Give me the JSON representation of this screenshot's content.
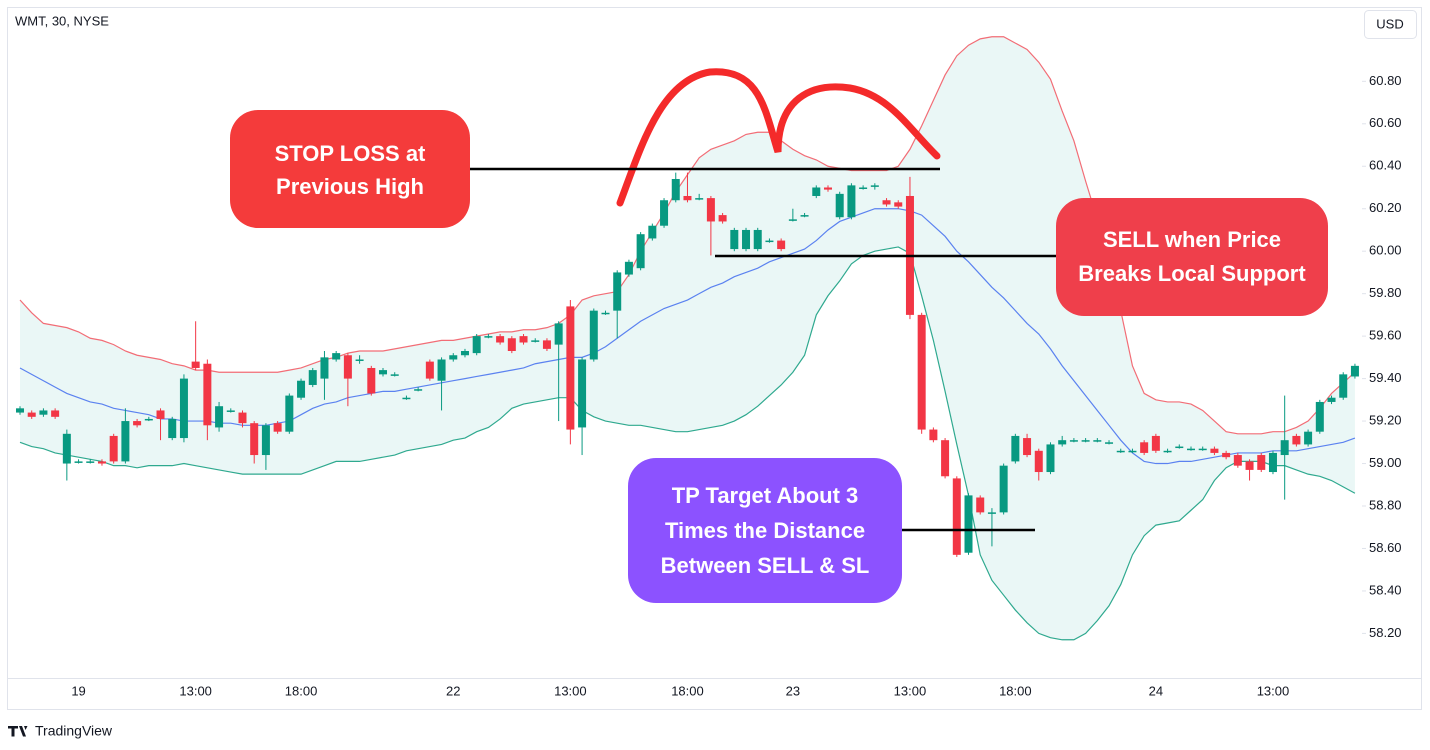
{
  "chart_data": {
    "type": "candlestick",
    "title": "WMT, 30, NYSE",
    "currency": "USD",
    "brand": "TradingView",
    "up_color": "#089981",
    "down_color": "#f23645",
    "band_fill": "#eaf7f6",
    "categories": [
      null,
      null,
      null,
      null,
      null,
      "19",
      null,
      null,
      null,
      null,
      null,
      null,
      null,
      null,
      null,
      "13:00",
      null,
      null,
      null,
      null,
      null,
      null,
      null,
      null,
      "18:00",
      null,
      null,
      null,
      null,
      null,
      null,
      null,
      null,
      null,
      null,
      null,
      null,
      "22",
      null,
      null,
      null,
      null,
      null,
      null,
      null,
      null,
      null,
      "13:00",
      null,
      null,
      null,
      null,
      null,
      null,
      null,
      null,
      null,
      "18:00",
      null,
      null,
      null,
      null,
      null,
      null,
      null,
      null,
      "23",
      null,
      null,
      null,
      null,
      null,
      null,
      null,
      null,
      null,
      "13:00",
      null,
      null,
      null,
      null,
      null,
      null,
      null,
      null,
      "18:00",
      null,
      null,
      null,
      null,
      null,
      null,
      null,
      null,
      null,
      null,
      null,
      "24",
      null,
      null,
      null,
      null,
      null,
      null,
      null,
      null,
      null,
      "13:00",
      null,
      null,
      null,
      null,
      null,
      null,
      null
    ],
    "open": [
      59.24,
      59.24,
      59.23,
      59.25,
      59.0,
      59.01,
      59.01,
      59.01,
      59.13,
      59.01,
      59.2,
      59.21,
      59.25,
      59.12,
      59.12,
      59.48,
      59.47,
      59.17,
      59.25,
      59.24,
      59.19,
      59.04,
      59.19,
      59.15,
      59.31,
      59.37,
      59.4,
      59.49,
      59.51,
      59.49,
      59.45,
      59.42,
      59.42,
      59.31,
      59.35,
      59.48,
      59.39,
      59.49,
      59.51,
      59.52,
      59.6,
      59.6,
      59.59,
      59.6,
      59.58,
      59.58,
      59.56,
      59.74,
      59.17,
      59.49,
      59.71,
      59.72,
      59.89,
      59.92,
      60.06,
      60.12,
      60.24,
      60.26,
      60.25,
      60.25,
      60.17,
      60.01,
      60.01,
      60.01,
      60.05,
      60.05,
      60.15,
      60.17,
      60.26,
      60.3,
      60.16,
      60.16,
      60.3,
      60.31,
      60.24,
      60.23,
      60.26,
      59.7,
      59.16,
      59.11,
      58.93,
      58.58,
      58.84,
      58.77,
      58.77,
      59.01,
      59.12,
      59.06,
      58.96,
      59.09,
      59.11,
      59.11,
      59.11,
      59.1,
      59.06,
      59.06,
      59.1,
      59.13,
      59.06,
      59.08,
      59.07,
      59.07,
      59.07,
      59.05,
      59.04,
      59.01,
      59.04,
      58.96,
      59.04,
      59.13,
      59.09,
      59.15,
      59.29,
      59.31,
      59.41
    ],
    "high": [
      59.27,
      59.25,
      59.26,
      59.26,
      59.16,
      59.02,
      59.02,
      59.02,
      59.14,
      59.26,
      59.21,
      59.22,
      59.26,
      59.22,
      59.42,
      59.67,
      59.49,
      59.29,
      59.26,
      59.25,
      59.2,
      59.19,
      59.2,
      59.33,
      59.4,
      59.45,
      59.53,
      59.53,
      59.52,
      59.51,
      59.46,
      59.45,
      59.43,
      59.32,
      59.36,
      59.49,
      59.5,
      59.52,
      59.54,
      59.61,
      59.61,
      59.61,
      59.6,
      59.61,
      59.59,
      59.59,
      59.67,
      59.77,
      59.5,
      59.73,
      59.72,
      59.91,
      59.96,
      60.09,
      60.13,
      60.25,
      60.37,
      60.37,
      60.27,
      60.26,
      60.18,
      60.11,
      60.11,
      60.11,
      60.06,
      60.06,
      60.2,
      60.18,
      60.31,
      60.31,
      60.28,
      60.32,
      60.31,
      60.32,
      60.25,
      60.24,
      60.35,
      59.71,
      59.17,
      59.12,
      58.94,
      58.86,
      58.85,
      58.79,
      59.0,
      59.14,
      59.14,
      59.07,
      59.1,
      59.13,
      59.12,
      59.12,
      59.12,
      59.11,
      59.07,
      59.07,
      59.11,
      59.14,
      59.07,
      59.09,
      59.08,
      59.08,
      59.08,
      59.06,
      59.05,
      59.02,
      59.05,
      59.06,
      59.32,
      59.14,
      59.16,
      59.3,
      59.32,
      59.43,
      59.47
    ],
    "low": [
      59.23,
      59.21,
      59.22,
      59.21,
      58.92,
      59.0,
      59.0,
      58.99,
      59.0,
      59.0,
      59.17,
      59.2,
      59.11,
      59.11,
      59.1,
      59.44,
      59.11,
      59.15,
      59.24,
      59.17,
      59.0,
      58.97,
      59.14,
      59.14,
      59.3,
      59.36,
      59.3,
      59.48,
      59.27,
      59.47,
      59.32,
      59.41,
      59.41,
      59.3,
      59.34,
      59.39,
      59.25,
      59.48,
      59.5,
      59.51,
      59.59,
      59.56,
      59.52,
      59.56,
      59.57,
      59.53,
      59.2,
      59.09,
      59.04,
      59.48,
      59.7,
      59.59,
      59.88,
      59.91,
      60.05,
      60.11,
      60.23,
      60.23,
      60.24,
      59.98,
      60.13,
      60.0,
      60.0,
      60.0,
      60.04,
      60.0,
      60.14,
      60.16,
      60.25,
      60.28,
      60.15,
      60.15,
      60.29,
      60.29,
      60.21,
      60.2,
      59.68,
      59.14,
      59.1,
      58.93,
      58.56,
      58.57,
      58.76,
      58.61,
      58.76,
      59.0,
      59.03,
      58.92,
      58.95,
      59.08,
      59.1,
      59.1,
      59.1,
      59.09,
      59.05,
      59.05,
      59.04,
      59.05,
      59.05,
      59.07,
      59.06,
      59.06,
      59.04,
      59.02,
      58.98,
      58.92,
      58.96,
      58.95,
      58.83,
      59.08,
      59.08,
      59.14,
      59.28,
      59.3,
      59.4
    ],
    "close": [
      59.26,
      59.22,
      59.25,
      59.22,
      59.14,
      59.01,
      59.01,
      59.0,
      59.01,
      59.2,
      59.18,
      59.21,
      59.21,
      59.21,
      59.4,
      59.45,
      59.18,
      59.27,
      59.25,
      59.19,
      59.04,
      59.18,
      59.15,
      59.32,
      59.39,
      59.44,
      59.5,
      59.52,
      59.4,
      59.49,
      59.33,
      59.44,
      59.42,
      59.31,
      59.35,
      59.4,
      59.49,
      59.51,
      59.53,
      59.6,
      59.6,
      59.57,
      59.53,
      59.57,
      59.58,
      59.54,
      59.66,
      59.16,
      59.49,
      59.72,
      59.71,
      59.9,
      59.95,
      60.08,
      60.12,
      60.24,
      60.34,
      60.24,
      60.25,
      60.14,
      60.14,
      60.1,
      60.1,
      60.1,
      60.05,
      60.01,
      60.15,
      60.17,
      60.3,
      60.29,
      60.27,
      60.31,
      60.3,
      60.31,
      60.22,
      60.21,
      59.7,
      59.16,
      59.11,
      58.94,
      58.57,
      58.85,
      58.77,
      58.77,
      58.99,
      59.13,
      59.04,
      58.96,
      59.09,
      59.11,
      59.11,
      59.11,
      59.11,
      59.1,
      59.06,
      59.06,
      59.05,
      59.06,
      59.06,
      59.08,
      59.07,
      59.07,
      59.05,
      59.03,
      58.99,
      58.97,
      58.97,
      59.05,
      59.11,
      59.09,
      59.15,
      59.29,
      59.31,
      59.42,
      59.46
    ],
    "upper_band": {
      "color": "#f26d76",
      "values": [
        59.77,
        59.71,
        59.66,
        59.65,
        59.64,
        59.62,
        59.59,
        59.58,
        59.56,
        59.53,
        59.51,
        59.5,
        59.49,
        59.47,
        59.46,
        59.44,
        59.44,
        59.43,
        59.43,
        59.43,
        59.43,
        59.43,
        59.43,
        59.44,
        59.45,
        59.47,
        59.49,
        59.5,
        59.52,
        59.53,
        59.53,
        59.53,
        59.54,
        59.55,
        59.56,
        59.57,
        59.58,
        59.58,
        59.59,
        59.6,
        59.61,
        59.62,
        59.62,
        59.63,
        59.63,
        59.64,
        59.66,
        59.7,
        59.77,
        59.79,
        59.8,
        59.81,
        59.89,
        60.0,
        60.09,
        60.18,
        60.28,
        60.36,
        60.44,
        60.48,
        60.5,
        60.52,
        60.55,
        60.56,
        60.56,
        60.52,
        60.48,
        60.45,
        60.43,
        60.4,
        60.39,
        60.38,
        60.38,
        60.38,
        60.38,
        60.4,
        60.48,
        60.59,
        60.71,
        60.83,
        60.92,
        60.97,
        61.0,
        61.01,
        61.01,
        60.98,
        60.95,
        60.89,
        60.81,
        60.66,
        60.52,
        60.33,
        60.15,
        59.95,
        59.72,
        59.46,
        59.33,
        59.3,
        59.29,
        59.29,
        59.28,
        59.25,
        59.2,
        59.15,
        59.14,
        59.14,
        59.14,
        59.15,
        59.15,
        59.17,
        59.2,
        59.26,
        59.33,
        59.38,
        59.43
      ]
    },
    "middle_band": {
      "color": "#5b82f0",
      "values": [
        59.45,
        59.42,
        59.39,
        59.36,
        59.33,
        59.31,
        59.29,
        59.28,
        59.26,
        59.25,
        59.24,
        59.23,
        59.21,
        59.21,
        59.2,
        59.2,
        59.2,
        59.19,
        59.19,
        59.18,
        59.18,
        59.18,
        59.19,
        59.2,
        59.23,
        59.26,
        59.28,
        59.29,
        59.31,
        59.32,
        59.33,
        59.34,
        59.34,
        59.35,
        59.36,
        59.37,
        59.38,
        59.39,
        59.4,
        59.41,
        59.42,
        59.43,
        59.44,
        59.45,
        59.47,
        59.48,
        59.49,
        59.5,
        59.5,
        59.52,
        59.55,
        59.59,
        59.63,
        59.67,
        59.7,
        59.73,
        59.75,
        59.77,
        59.8,
        59.83,
        59.85,
        59.88,
        59.9,
        59.92,
        59.95,
        59.97,
        59.99,
        60.01,
        60.05,
        60.1,
        60.14,
        60.16,
        60.18,
        60.2,
        60.2,
        60.2,
        60.19,
        60.17,
        60.12,
        60.07,
        60.0,
        59.95,
        59.89,
        59.83,
        59.78,
        59.72,
        59.66,
        59.61,
        59.54,
        59.46,
        59.39,
        59.32,
        59.25,
        59.18,
        59.11,
        59.05,
        59.01,
        59.0,
        59.0,
        59.01,
        59.01,
        59.02,
        59.03,
        59.04,
        59.05,
        59.05,
        59.05,
        59.06,
        59.06,
        59.06,
        59.07,
        59.08,
        59.09,
        59.1,
        59.12
      ]
    },
    "lower_band": {
      "color": "#2fa98f",
      "values": [
        59.1,
        59.08,
        59.07,
        59.05,
        59.04,
        59.03,
        59.02,
        59.01,
        58.99,
        58.99,
        58.98,
        58.99,
        58.99,
        58.99,
        59.0,
        58.99,
        58.98,
        58.97,
        58.96,
        58.95,
        58.95,
        58.95,
        58.95,
        58.95,
        58.95,
        58.97,
        58.99,
        59.01,
        59.01,
        59.01,
        59.02,
        59.03,
        59.04,
        59.06,
        59.07,
        59.08,
        59.09,
        59.11,
        59.12,
        59.15,
        59.17,
        59.21,
        59.26,
        59.28,
        59.29,
        59.3,
        59.31,
        59.31,
        59.25,
        59.22,
        59.2,
        59.19,
        59.18,
        59.18,
        59.17,
        59.16,
        59.15,
        59.15,
        59.16,
        59.17,
        59.18,
        59.2,
        59.23,
        59.27,
        59.32,
        59.37,
        59.43,
        59.51,
        59.7,
        59.79,
        59.86,
        59.94,
        59.98,
        60.0,
        60.01,
        60.02,
        59.99,
        59.79,
        59.58,
        59.34,
        59.09,
        58.85,
        58.57,
        58.45,
        58.38,
        58.31,
        58.25,
        58.2,
        58.18,
        58.17,
        58.17,
        58.2,
        58.26,
        58.33,
        58.43,
        58.57,
        58.66,
        58.71,
        58.72,
        58.73,
        58.78,
        58.83,
        58.92,
        58.98,
        59.01,
        59.01,
        59.01,
        58.99,
        58.99,
        58.97,
        58.95,
        58.94,
        58.92,
        58.89,
        58.86
      ]
    },
    "ylim": [
      57.99,
      61.15
    ],
    "yticks": [
      {
        "value": 60.8,
        "label": "60.80"
      },
      {
        "value": 60.6,
        "label": "60.60"
      },
      {
        "value": 60.4,
        "label": "60.40"
      },
      {
        "value": 60.2,
        "label": "60.20"
      },
      {
        "value": 60.0,
        "label": "60.00"
      },
      {
        "value": 59.8,
        "label": "59.80"
      },
      {
        "value": 59.6,
        "label": "59.60"
      },
      {
        "value": 59.4,
        "label": "59.40"
      },
      {
        "value": 59.2,
        "label": "59.20"
      },
      {
        "value": 59.0,
        "label": "59.00"
      },
      {
        "value": 58.8,
        "label": "58.80"
      },
      {
        "value": 58.6,
        "label": "58.60"
      },
      {
        "value": 58.4,
        "label": "58.40"
      },
      {
        "value": 58.2,
        "label": "58.20"
      }
    ],
    "grid": false,
    "annotations": [
      {
        "lines": [
          "STOP LOSS at",
          "Previous High"
        ],
        "color": "#f43b3b"
      },
      {
        "lines": [
          "SELL when Price",
          "Breaks Local Support"
        ],
        "color": "#ef3f4b"
      },
      {
        "lines": [
          "TP Target About 3",
          "Times the Distance",
          "Between SELL & SL"
        ],
        "color": "#8c52ff"
      }
    ]
  }
}
